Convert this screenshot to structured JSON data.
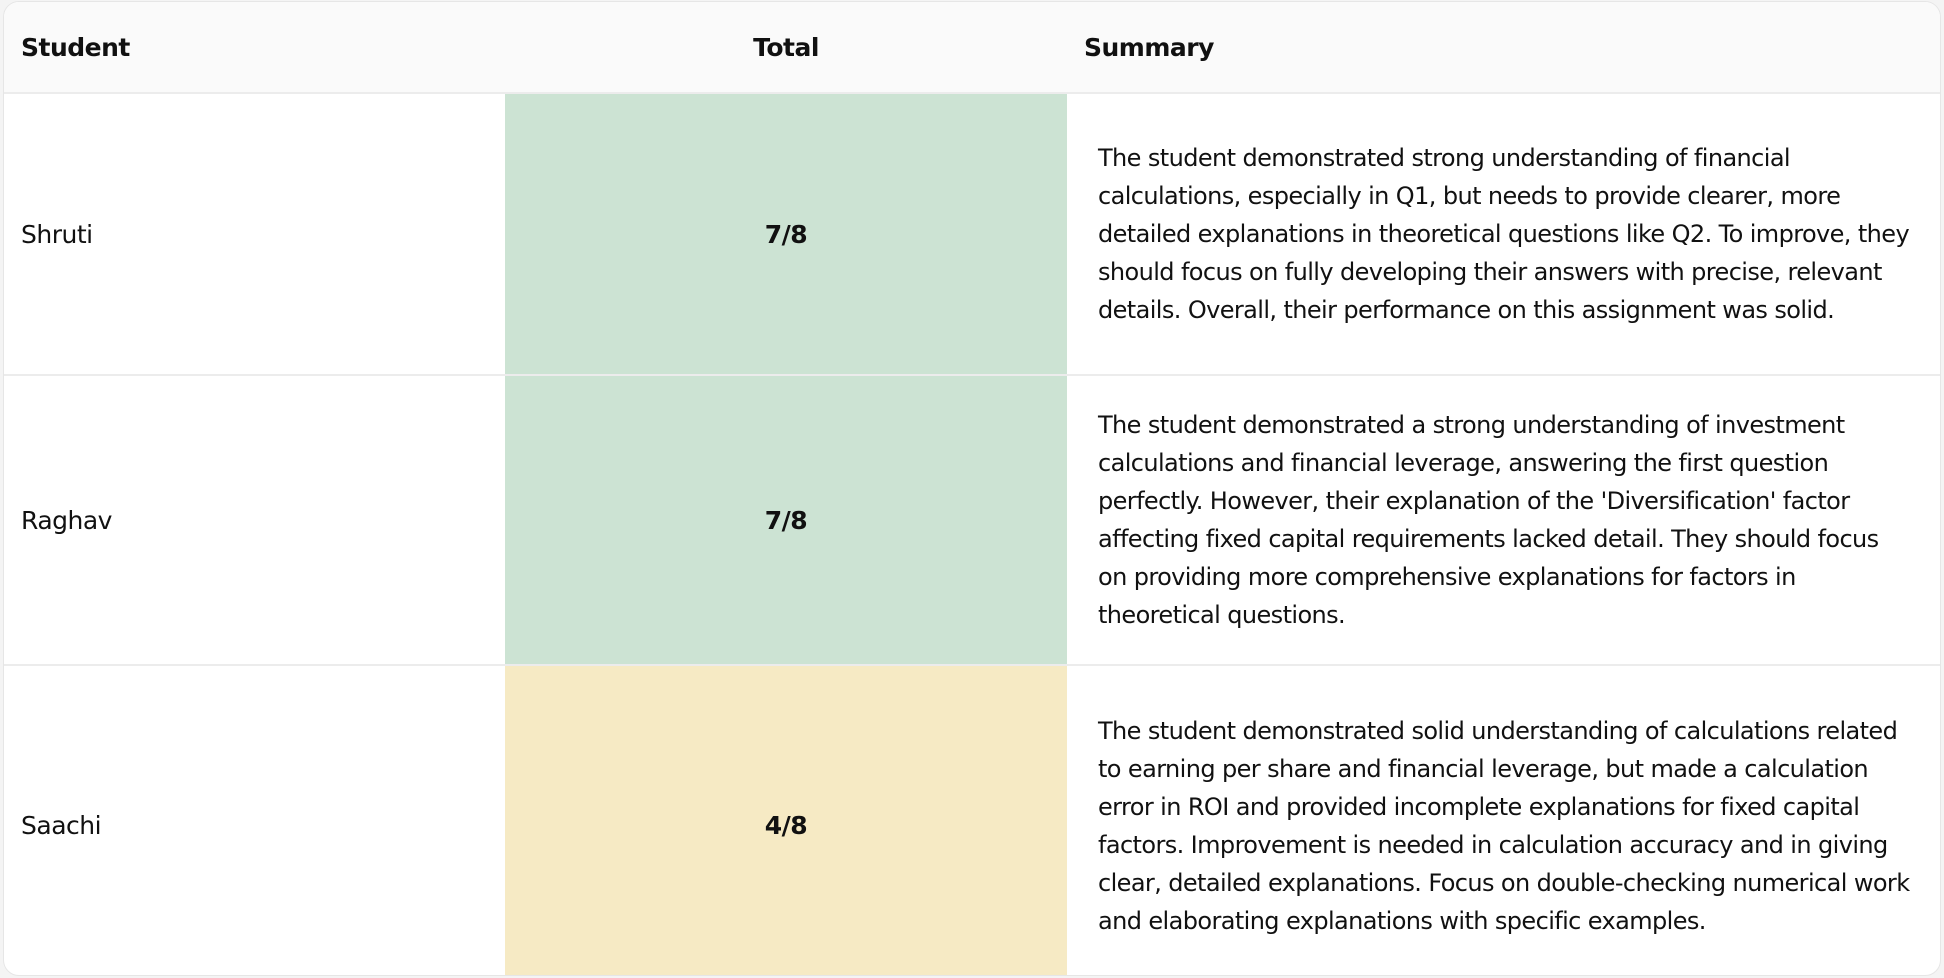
{
  "table": {
    "headers": {
      "student": "Student",
      "total": "Total",
      "summary": "Summary"
    },
    "colors": {
      "high": "#cce3d3",
      "mid": "#f6eac4"
    },
    "rows": [
      {
        "student": "Shruti",
        "total": "7/8",
        "level": "high",
        "summary": "The student demonstrated strong understanding of financial calculations, especially in Q1, but needs to provide clearer, more detailed explanations in theoretical questions like Q2. To improve, they should focus on fully developing their answers with precise, relevant details. Overall, their performance on this assignment was solid."
      },
      {
        "student": "Raghav",
        "total": "7/8",
        "level": "high",
        "summary": "The student demonstrated a strong understanding of investment calculations and financial leverage, answering the first question perfectly. However, their explanation of the 'Diversification' factor affecting fixed capital requirements lacked detail. They should focus on providing more comprehensive explanations for factors in theoretical questions."
      },
      {
        "student": "Saachi",
        "total": "4/8",
        "level": "mid",
        "summary": "The student demonstrated solid understanding of calculations related to earning per share and financial leverage, but made a calculation error in ROI and provided incomplete explanations for fixed capital factors. Improvement is needed in calculation accuracy and in giving clear, detailed explanations. Focus on double-checking numerical work and elaborating explanations with specific examples."
      }
    ]
  }
}
